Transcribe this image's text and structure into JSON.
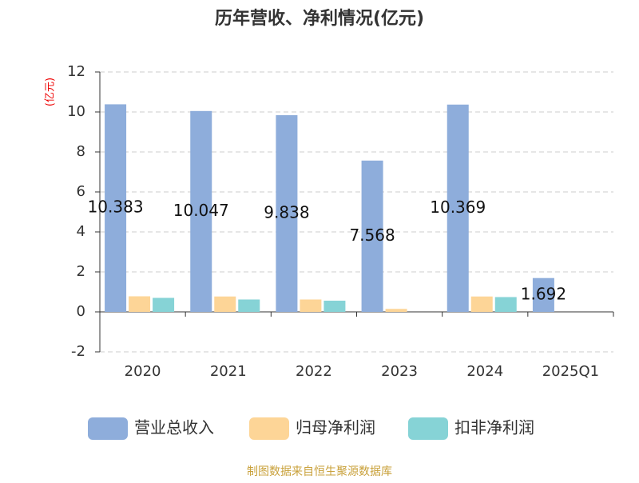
{
  "chart_data": {
    "type": "bar",
    "title": "历年营收、净利情况(亿元)",
    "y_label": "(亿元)",
    "categories": [
      "2020",
      "2021",
      "2022",
      "2023",
      "2024",
      "2025Q1"
    ],
    "series": [
      {
        "name": "营业总收入",
        "color": "#8eaddb",
        "values": [
          10.383,
          10.047,
          9.838,
          7.568,
          10.369,
          1.692
        ],
        "show_labels": true
      },
      {
        "name": "归母净利润",
        "color": "#fdd597",
        "values": [
          0.78,
          0.77,
          0.62,
          0.15,
          0.77,
          null
        ]
      },
      {
        "name": "扣非净利润",
        "color": "#86d3d6",
        "values": [
          0.7,
          0.62,
          0.56,
          null,
          0.74,
          null
        ]
      }
    ],
    "ylim": [
      -2,
      12
    ],
    "yticks": [
      -2,
      0,
      2,
      4,
      6,
      8,
      10,
      12
    ],
    "grid": true,
    "legend": "bottom",
    "source": "制图数据来自恒生聚源数据库"
  }
}
